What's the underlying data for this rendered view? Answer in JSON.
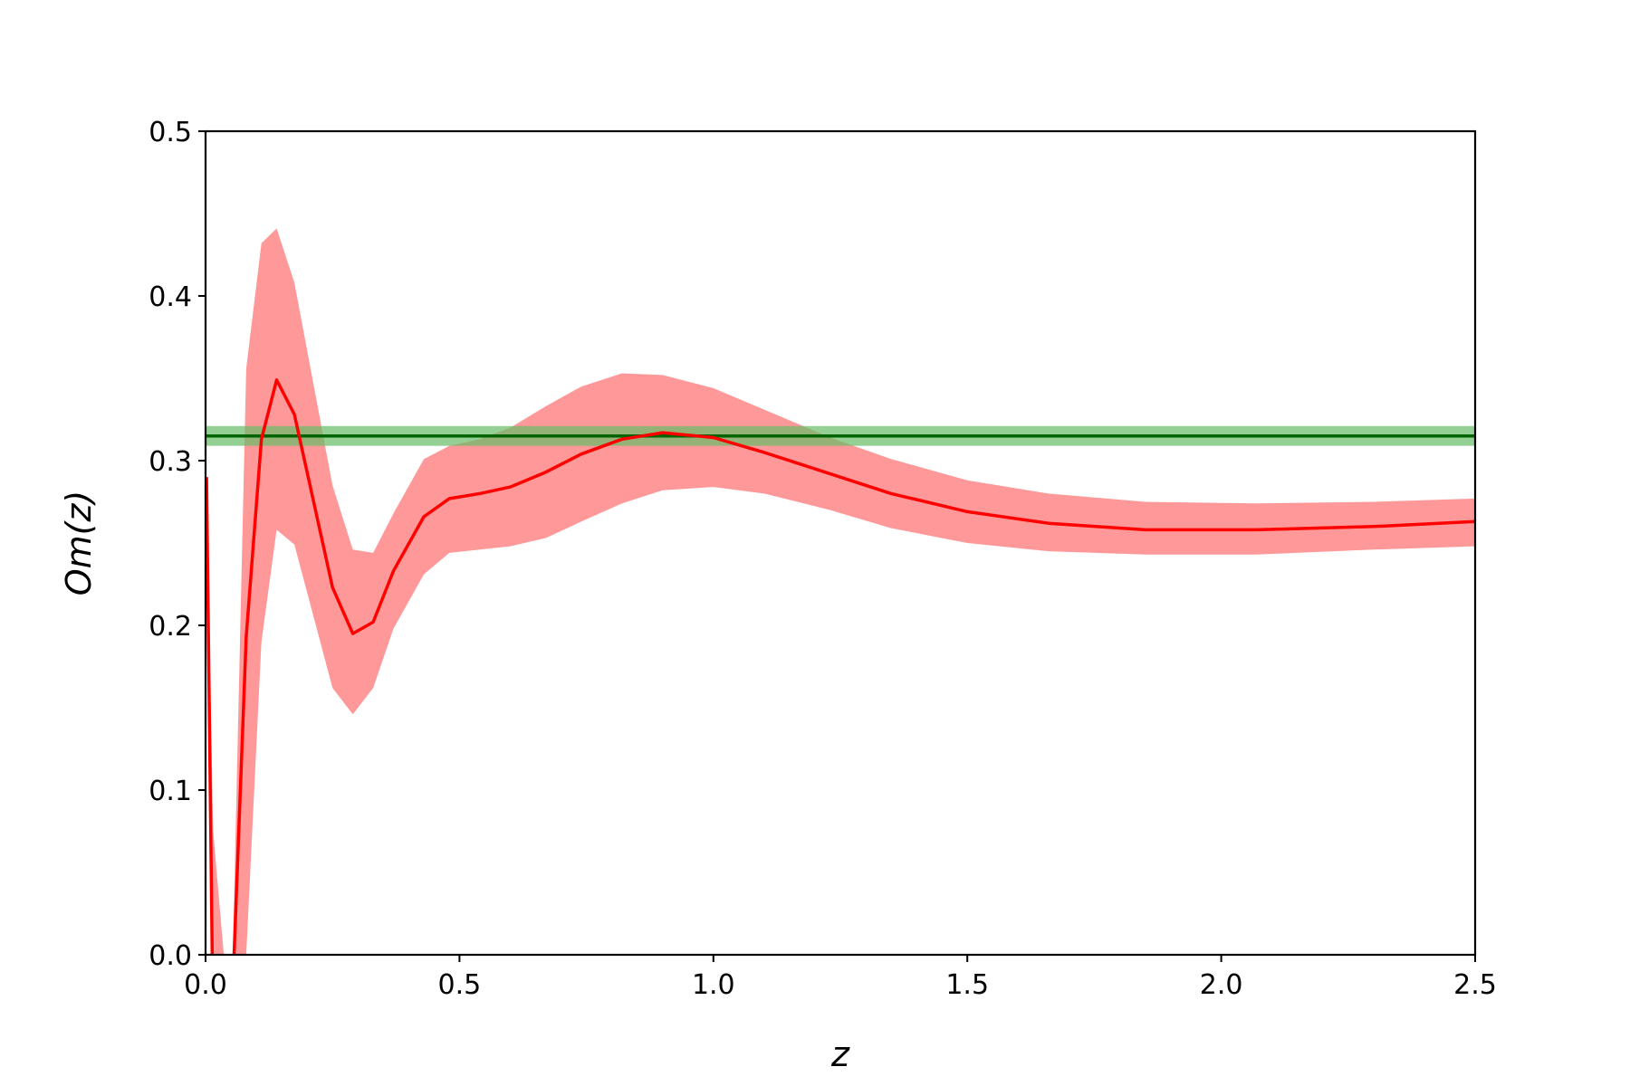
{
  "chart_data": {
    "type": "line",
    "xlabel": "z",
    "ylabel": "Om(z)",
    "xlim": [
      0.0,
      2.5
    ],
    "ylim": [
      0.0,
      0.5
    ],
    "grid": false,
    "x_ticks": [
      "0.0",
      "0.5",
      "1.0",
      "1.5",
      "2.0",
      "2.5"
    ],
    "y_ticks": [
      "0.0",
      "0.1",
      "0.2",
      "0.3",
      "0.4",
      "0.5"
    ],
    "series": [
      {
        "color": "#ff0000",
        "band_color": "#ff9999",
        "x": [
          0.002,
          0.015,
          0.05,
          0.08,
          0.11,
          0.14,
          0.175,
          0.25,
          0.29,
          0.33,
          0.37,
          0.43,
          0.48,
          0.54,
          0.6,
          0.67,
          0.74,
          0.82,
          0.9,
          1.0,
          1.1,
          1.23,
          1.35,
          1.5,
          1.66,
          1.85,
          2.07,
          2.3,
          2.5
        ],
        "values": [
          0.29,
          -0.05,
          -0.05,
          0.193,
          0.313,
          0.349,
          0.328,
          0.223,
          0.195,
          0.202,
          0.233,
          0.266,
          0.277,
          0.28,
          0.284,
          0.293,
          0.304,
          0.313,
          0.317,
          0.314,
          0.305,
          0.292,
          0.28,
          0.269,
          0.262,
          0.258,
          0.258,
          0.26,
          0.263
        ],
        "upper": [
          0.29,
          0.075,
          -0.05,
          0.356,
          0.432,
          0.441,
          0.408,
          0.285,
          0.246,
          0.244,
          0.268,
          0.301,
          0.309,
          0.313,
          0.32,
          0.333,
          0.345,
          0.353,
          0.352,
          0.344,
          0.331,
          0.314,
          0.301,
          0.288,
          0.28,
          0.275,
          0.274,
          0.275,
          0.277
        ],
        "lower": [
          0.29,
          -0.05,
          -0.05,
          0.0,
          0.19,
          0.258,
          0.249,
          0.162,
          0.146,
          0.162,
          0.198,
          0.231,
          0.244,
          0.246,
          0.248,
          0.253,
          0.263,
          0.274,
          0.282,
          0.284,
          0.28,
          0.27,
          0.259,
          0.25,
          0.245,
          0.243,
          0.243,
          0.246,
          0.248
        ]
      },
      {
        "color": "#006400",
        "band_color": "#66bb66",
        "y": 0.315,
        "band": [
          0.309,
          0.321
        ]
      }
    ]
  }
}
